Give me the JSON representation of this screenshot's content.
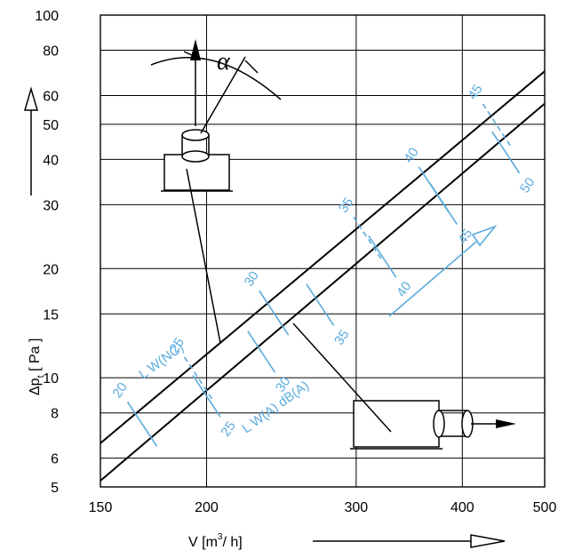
{
  "chart_data": {
    "type": "line",
    "title": "",
    "x_scale": "log",
    "y_scale": "log",
    "xlim": [
      150,
      500
    ],
    "ylim": [
      5,
      100
    ],
    "x_ticks": [
      150,
      200,
      300,
      400,
      500
    ],
    "x_tick_labels": [
      "150",
      "200",
      "300",
      "400",
      "500"
    ],
    "y_ticks": [
      5,
      6,
      8,
      10,
      15,
      20,
      30,
      40,
      50,
      60,
      80,
      100
    ],
    "y_tick_labels": [
      "5",
      "6",
      "8",
      "10",
      "15",
      "20",
      "30",
      "40",
      "50",
      "60",
      "80",
      "100"
    ],
    "xlabel": "V  [m³/ h]",
    "ylabel": "Δpt  [ Pa ]",
    "grid": true,
    "series": [
      {
        "x": [
          150,
          500
        ],
        "y": [
          6.6,
          70
        ]
      },
      {
        "x": [
          150,
          500
        ],
        "y": [
          5.2,
          57
        ]
      }
    ],
    "noise_scale": {
      "upper": [
        {
          "label": "20",
          "x": 168,
          "y": 7.45,
          "style": "solid"
        },
        {
          "label": "25",
          "x": 196,
          "y": 9.9,
          "style": "dashed"
        },
        {
          "label": "30",
          "x": 240,
          "y": 15.1,
          "style": "solid"
        },
        {
          "label": "35",
          "x": 310,
          "y": 24.1,
          "style": "dashed"
        },
        {
          "label": "40",
          "x": 370,
          "y": 33.1,
          "style": "solid"
        },
        {
          "label": "45",
          "x": 440,
          "y": 49.4,
          "style": "dashed"
        }
      ],
      "lower": [
        {
          "label": "25",
          "x": 200,
          "y": 8.9
        },
        {
          "label": "30",
          "x": 232,
          "y": 11.8
        },
        {
          "label": "35",
          "x": 272,
          "y": 15.9
        },
        {
          "label": "40",
          "x": 322,
          "y": 21.6
        },
        {
          "label": "45",
          "x": 380,
          "y": 30.2
        },
        {
          "label": "50",
          "x": 450,
          "y": 41.8
        }
      ],
      "label_nc": "L W(NC)",
      "label_a": "L W(A)  dB(A)"
    },
    "annotations": {
      "angle_symbol": "α"
    }
  }
}
